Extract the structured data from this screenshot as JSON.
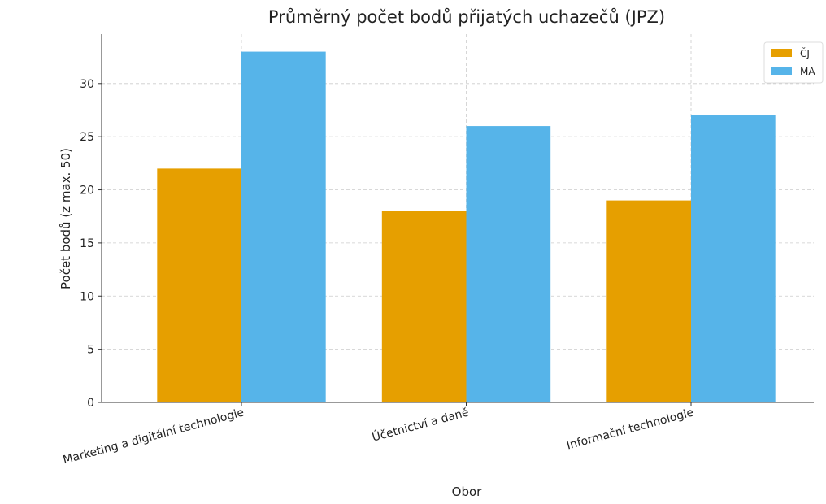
{
  "chart_data": {
    "type": "bar",
    "title": "Průměrný počet bodů přijatých uchazečů (JPZ)",
    "x_label": "Obor",
    "y_label": "Počet bodů (z max. 50)",
    "categories": [
      "Marketing a digitální technologie",
      "Účetnictví a daně",
      "Informační technologie"
    ],
    "series": [
      {
        "name": "ČJ",
        "color": "#E69F00",
        "values": [
          22,
          18,
          19
        ]
      },
      {
        "name": "MA",
        "color": "#56B4E9",
        "values": [
          33,
          26,
          27
        ]
      }
    ],
    "ylim": [
      0,
      34.65
    ],
    "yticks": [
      0,
      5,
      10,
      15,
      20,
      25,
      30
    ],
    "grid": true,
    "legend": "upper right"
  }
}
